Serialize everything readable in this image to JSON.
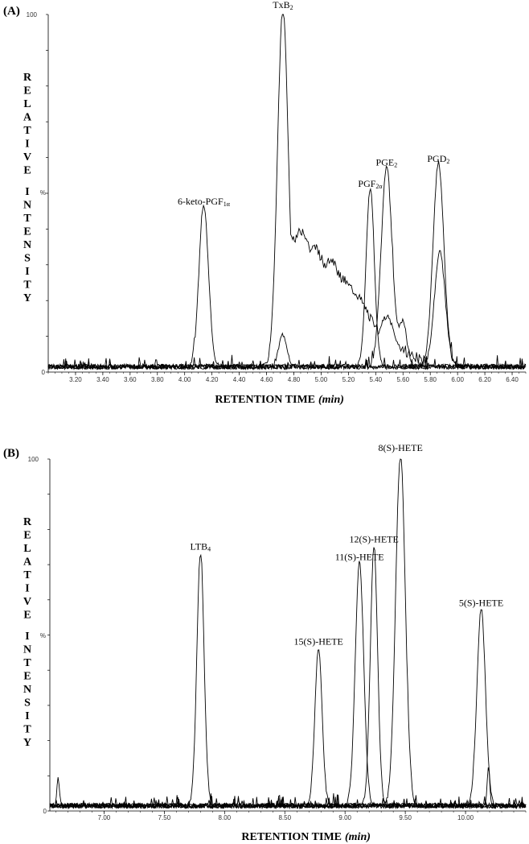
{
  "chart_data": [
    {
      "type": "line",
      "panel_label": "(A)",
      "xlabel": "RETENTION TIME",
      "xlabel_unit": "(min)",
      "ylabel": "RELATIVE INTENSITY",
      "y_top_tick": "100",
      "y_mid_tick": "%",
      "y_zero_tick": "0",
      "xlim": [
        3.0,
        6.5
      ],
      "ylim": [
        0,
        100
      ],
      "x_ticks": [
        "3.20",
        "3.40",
        "3.60",
        "3.80",
        "4.00",
        "4.20",
        "4.40",
        "4.60",
        "4.80",
        "5.00",
        "5.20",
        "5.40",
        "5.60",
        "5.80",
        "6.00",
        "6.20",
        "6.40"
      ],
      "peaks": [
        {
          "label": "6-keto-PGF1α",
          "label_main": "6-keto-PGF",
          "label_sub": "1α",
          "rt": 4.14,
          "height": 45,
          "width": 0.035
        },
        {
          "label": "TxB2",
          "label_main": "TxB",
          "label_sub": "2",
          "rt": 4.72,
          "height": 100,
          "width": 0.04
        },
        {
          "label": "PGF2α",
          "label_main": "PGF",
          "label_sub": "2α",
          "rt": 5.36,
          "height": 50,
          "width": 0.03
        },
        {
          "label": "PGE2",
          "label_main": "PGE",
          "label_sub": "2",
          "rt": 5.48,
          "height": 56,
          "width": 0.04
        },
        {
          "label": "PGD2",
          "label_main": "PGD",
          "label_sub": "2",
          "rt": 5.86,
          "height": 57,
          "width": 0.04
        }
      ],
      "secondary_peaks": [
        {
          "rt": 4.72,
          "height": 9,
          "width": 0.03
        },
        {
          "rt": 5.48,
          "height": 14,
          "width": 0.06
        },
        {
          "rt": 5.87,
          "height": 32,
          "width": 0.04
        },
        {
          "rt": 5.6,
          "height": 12,
          "width": 0.03
        }
      ],
      "shoulder_trace": [
        [
          4.75,
          36
        ],
        [
          4.82,
          38
        ],
        [
          4.87,
          40
        ],
        [
          4.92,
          34
        ],
        [
          4.97,
          35
        ],
        [
          5.02,
          30
        ],
        [
          5.08,
          31
        ],
        [
          5.14,
          27
        ],
        [
          5.2,
          24
        ],
        [
          5.26,
          22
        ],
        [
          5.32,
          18
        ],
        [
          5.38,
          14
        ],
        [
          5.45,
          10
        ],
        [
          5.55,
          8
        ],
        [
          5.65,
          5
        ],
        [
          5.75,
          3
        ]
      ]
    },
    {
      "type": "line",
      "panel_label": "(B)",
      "xlabel": "RETENTION TIME",
      "xlabel_unit": "(min)",
      "ylabel": "RELATIVE INTENSITY",
      "y_top_tick": "100",
      "y_mid_tick": "%",
      "y_zero_tick": "0",
      "xlim": [
        6.55,
        10.5
      ],
      "ylim": [
        0,
        100
      ],
      "x_ticks": [
        "7.00",
        "7.50",
        "8.00",
        "8.50",
        "9.00",
        "9.50",
        "10.00"
      ],
      "peaks": [
        {
          "label": "LTB4",
          "label_main": "LTB",
          "label_sub": "4",
          "rt": 7.8,
          "height": 72,
          "width": 0.03
        },
        {
          "label": "15(S)-HETE",
          "label_main": "15(S)-HETE",
          "label_sub": "",
          "rt": 8.78,
          "height": 45,
          "width": 0.03
        },
        {
          "label": "11(S)-HETE",
          "label_main": "11(S)-HETE",
          "label_sub": "",
          "rt": 9.12,
          "height": 69,
          "width": 0.035
        },
        {
          "label": "12(S)-HETE",
          "label_main": "12(S)-HETE",
          "label_sub": "",
          "rt": 9.24,
          "height": 74,
          "width": 0.03
        },
        {
          "label": "8(S)-HETE",
          "label_main": "8(S)-HETE",
          "label_sub": "",
          "rt": 9.46,
          "height": 100,
          "width": 0.04
        },
        {
          "label": "5(S)-HETE",
          "label_main": "5(S)-HETE",
          "label_sub": "",
          "rt": 10.13,
          "height": 56,
          "width": 0.035
        }
      ],
      "secondary_peaks": [
        {
          "rt": 6.62,
          "height": 8,
          "width": 0.01
        },
        {
          "rt": 10.19,
          "height": 11,
          "width": 0.01
        }
      ]
    }
  ]
}
